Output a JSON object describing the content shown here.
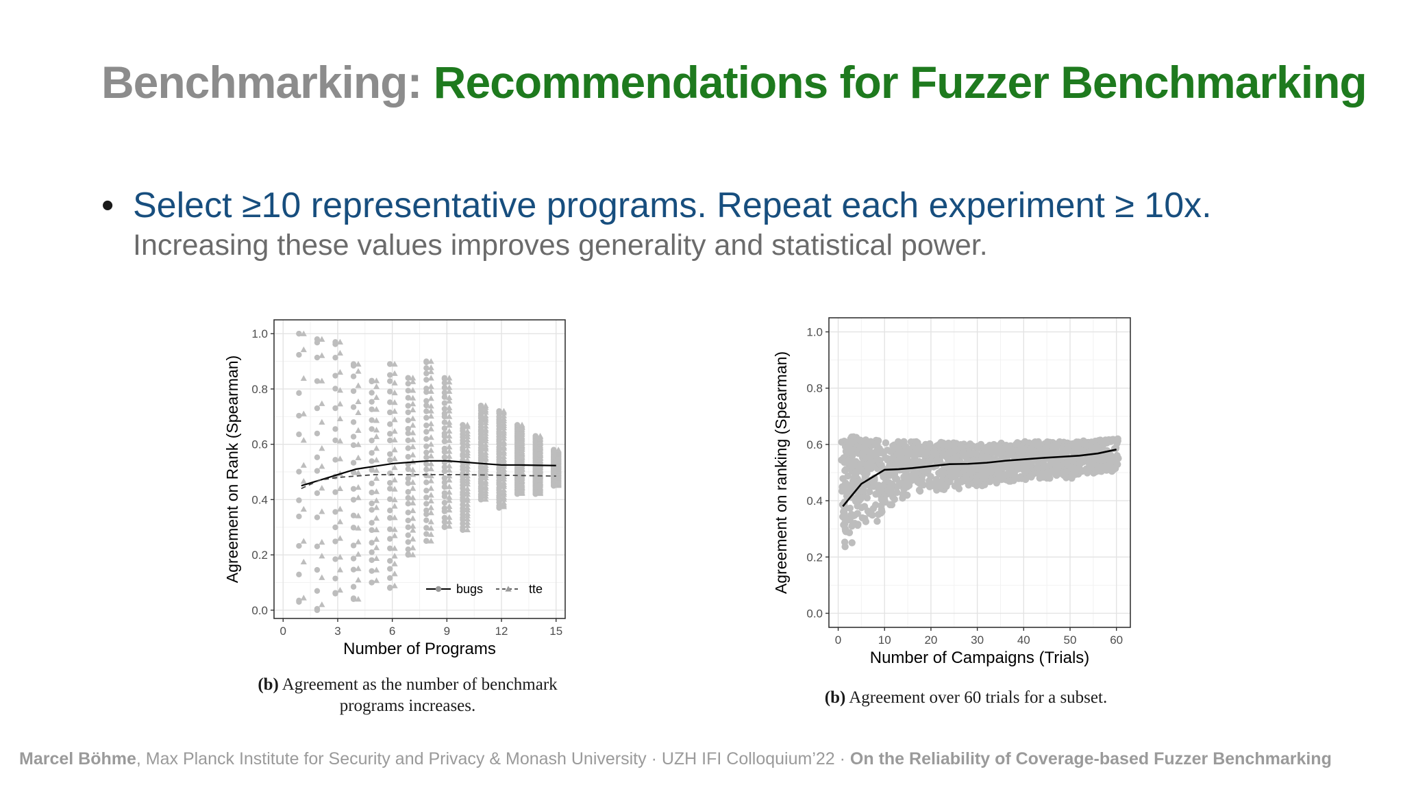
{
  "slide": {
    "title_prefix": "Benchmarking:",
    "title_main": "Recommendations for Fuzzer Benchmarking",
    "bullet_symbol": "•",
    "bullet": "Select ≥10 representative programs. Repeat each experiment ≥ 10x.",
    "subtext": "Increasing these values improves generality and statistical power.",
    "footer": {
      "author": "Marcel Böhme",
      "affiliation": ", Max Planck Institute for Security and Privacy & Monash University · UZH IFI Colloquium’22 · ",
      "talk": "On the Reliability of Coverage-based Fuzzer Benchmarking"
    },
    "captions": [
      {
        "label": "(b)",
        "text": "Agreement as the number of benchmark programs increases."
      },
      {
        "label": "(b)",
        "text": "Agreement over 60 trials for a subset."
      }
    ],
    "colors": {
      "title_gray": "#8c8c8c",
      "title_green": "#1e7a1e",
      "bullet_blue": "#174e7e",
      "point_gray": "#bdbdbd",
      "line": "#000000"
    }
  },
  "chart_data": [
    {
      "type": "scatter",
      "xlabel": "Number of Programs",
      "ylabel": "Agreement on Rank (Spearman)",
      "xlim": [
        -0.5,
        15.5
      ],
      "ylim": [
        -0.03,
        1.05
      ],
      "xticks": [
        0,
        3,
        6,
        9,
        12,
        15
      ],
      "yticks": [
        0.0,
        0.2,
        0.4,
        0.6,
        0.8,
        1.0
      ],
      "ytick_labels": [
        "0.0",
        "0.2",
        "0.4",
        "0.6",
        "0.8",
        "1.0"
      ],
      "grid": true,
      "legend": "bottom-right",
      "point_distribution": [
        {
          "x": 1,
          "min": 0.03,
          "max": 1.0
        },
        {
          "x": 2,
          "min": 0.0,
          "max": 0.98
        },
        {
          "x": 3,
          "min": 0.06,
          "max": 0.97
        },
        {
          "x": 4,
          "min": 0.04,
          "max": 0.89
        },
        {
          "x": 5,
          "min": 0.1,
          "max": 0.83
        },
        {
          "x": 6,
          "min": 0.08,
          "max": 0.89
        },
        {
          "x": 7,
          "min": 0.2,
          "max": 0.84
        },
        {
          "x": 8,
          "min": 0.25,
          "max": 0.9
        },
        {
          "x": 9,
          "min": 0.3,
          "max": 0.84
        },
        {
          "x": 10,
          "min": 0.29,
          "max": 0.67
        },
        {
          "x": 11,
          "min": 0.4,
          "max": 0.74
        },
        {
          "x": 12,
          "min": 0.37,
          "max": 0.72
        },
        {
          "x": 13,
          "min": 0.42,
          "max": 0.67
        },
        {
          "x": 14,
          "min": 0.42,
          "max": 0.63
        },
        {
          "x": 15,
          "min": 0.45,
          "max": 0.58
        }
      ],
      "series": [
        {
          "name": "bugs",
          "style": "solid",
          "marker": "circle",
          "x": [
            1,
            2,
            3,
            4,
            5,
            6,
            7,
            8,
            9,
            10,
            11,
            12,
            13,
            14,
            15
          ],
          "values": [
            0.45,
            0.47,
            0.49,
            0.51,
            0.52,
            0.53,
            0.535,
            0.54,
            0.54,
            0.535,
            0.53,
            0.525,
            0.525,
            0.524,
            0.523
          ]
        },
        {
          "name": "tte",
          "style": "dashed",
          "marker": "triangle",
          "x": [
            1,
            2,
            3,
            4,
            5,
            6,
            7,
            8,
            9,
            10,
            11,
            12,
            13,
            14,
            15
          ],
          "values": [
            0.44,
            0.47,
            0.48,
            0.485,
            0.49,
            0.49,
            0.49,
            0.49,
            0.49,
            0.49,
            0.489,
            0.488,
            0.487,
            0.486,
            0.485
          ]
        }
      ]
    },
    {
      "type": "scatter",
      "xlabel": "Number of Campaigns (Trials)",
      "ylabel": "Agreement on ranking (Spearman)",
      "xlim": [
        -2,
        63
      ],
      "ylim": [
        -0.05,
        1.05
      ],
      "xticks": [
        0,
        10,
        20,
        30,
        40,
        50,
        60
      ],
      "yticks": [
        0.0,
        0.2,
        0.4,
        0.6,
        0.8,
        1.0
      ],
      "ytick_labels": [
        "0.0",
        "0.2",
        "0.4",
        "0.6",
        "0.8",
        "1.0"
      ],
      "grid": true,
      "point_band": [
        {
          "x": 1,
          "min": 0.14,
          "max": 0.62
        },
        {
          "x": 3,
          "min": 0.25,
          "max": 0.63
        },
        {
          "x": 5,
          "min": 0.33,
          "max": 0.62
        },
        {
          "x": 8,
          "min": 0.29,
          "max": 0.62
        },
        {
          "x": 10,
          "min": 0.36,
          "max": 0.61
        },
        {
          "x": 15,
          "min": 0.42,
          "max": 0.61
        },
        {
          "x": 20,
          "min": 0.43,
          "max": 0.61
        },
        {
          "x": 30,
          "min": 0.45,
          "max": 0.6
        },
        {
          "x": 40,
          "min": 0.47,
          "max": 0.61
        },
        {
          "x": 50,
          "min": 0.48,
          "max": 0.61
        },
        {
          "x": 60,
          "min": 0.5,
          "max": 0.62
        }
      ],
      "series": [
        {
          "style": "solid",
          "x": [
            1,
            3,
            5,
            7,
            10,
            13,
            16,
            20,
            24,
            28,
            32,
            36,
            40,
            44,
            48,
            52,
            56,
            60
          ],
          "values": [
            0.38,
            0.42,
            0.46,
            0.48,
            0.51,
            0.512,
            0.516,
            0.523,
            0.53,
            0.531,
            0.535,
            0.542,
            0.547,
            0.552,
            0.556,
            0.56,
            0.568,
            0.582
          ]
        }
      ]
    }
  ]
}
